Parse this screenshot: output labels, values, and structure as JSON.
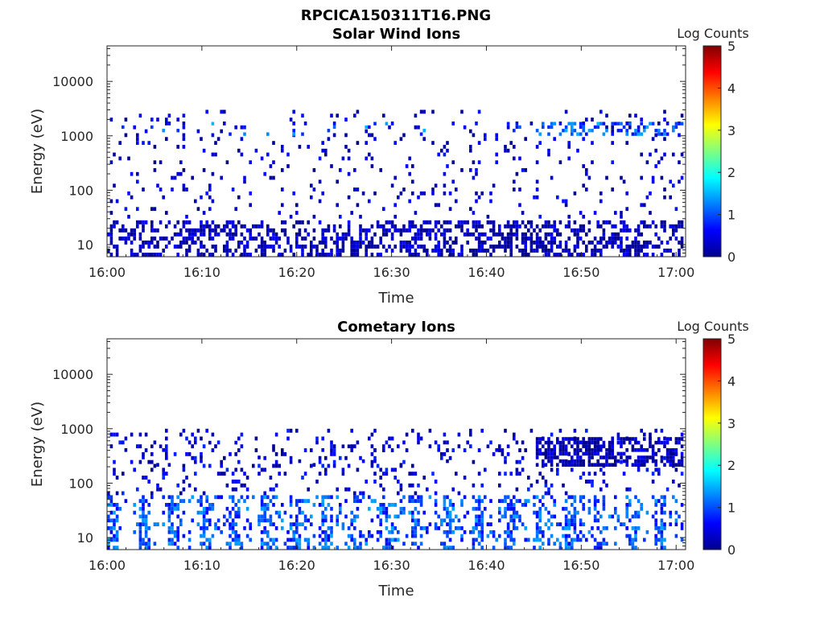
{
  "figure": {
    "title": "RPCICA150311T16.PNG"
  },
  "colormap": {
    "stops": [
      "#00008f",
      "#0000ff",
      "#0080ff",
      "#00ffff",
      "#80ff80",
      "#ffff00",
      "#ff8000",
      "#ff0000",
      "#800000"
    ]
  },
  "chart_data": [
    {
      "type": "heatmap",
      "title": "Solar Wind Ions",
      "xlabel": "Time",
      "ylabel": "Energy (eV)",
      "x_ticks": [
        "16:00",
        "16:10",
        "16:20",
        "16:30",
        "16:40",
        "16:50",
        "17:00"
      ],
      "xlim_minutes": [
        0,
        61
      ],
      "y_ticks": [
        "10",
        "100",
        "1000",
        "10000"
      ],
      "yscale": "log",
      "ylim": [
        6,
        45000
      ],
      "colorbar": {
        "label": "Log Counts",
        "ticks": [
          "0",
          "1",
          "2",
          "3",
          "4",
          "5"
        ],
        "range": [
          0,
          5
        ]
      },
      "bands": [
        {
          "energy_range": [
            6,
            28
          ],
          "level": 0.2,
          "note": "continuous low-energy blocks"
        },
        {
          "energy_range": [
            30,
            3000
          ],
          "level": 0.3,
          "note": "sparse scattered counts"
        },
        {
          "energy_range": [
            1000,
            1800
          ],
          "level": 1.1,
          "note": "peaks near 16:45-17:00"
        }
      ]
    },
    {
      "type": "heatmap",
      "title": "Cometary Ions",
      "xlabel": "Time",
      "ylabel": "Energy (eV)",
      "x_ticks": [
        "16:00",
        "16:10",
        "16:20",
        "16:30",
        "16:40",
        "16:50",
        "17:00"
      ],
      "xlim_minutes": [
        0,
        61
      ],
      "y_ticks": [
        "10",
        "100",
        "1000",
        "10000"
      ],
      "yscale": "log",
      "ylim": [
        6,
        45000
      ],
      "colorbar": {
        "label": "Log Counts",
        "ticks": [
          "0",
          "1",
          "2",
          "3",
          "4",
          "5"
        ],
        "range": [
          0,
          5
        ]
      },
      "bands": [
        {
          "energy_range": [
            6,
            60
          ],
          "level": 1.0,
          "note": "periodic bursts every ~3 min"
        },
        {
          "energy_range": [
            60,
            1000
          ],
          "level": 0.4,
          "note": "scattered counts"
        },
        {
          "energy_range": [
            200,
            700
          ],
          "level": 0.2,
          "note": "dense after 16:52"
        }
      ]
    }
  ]
}
